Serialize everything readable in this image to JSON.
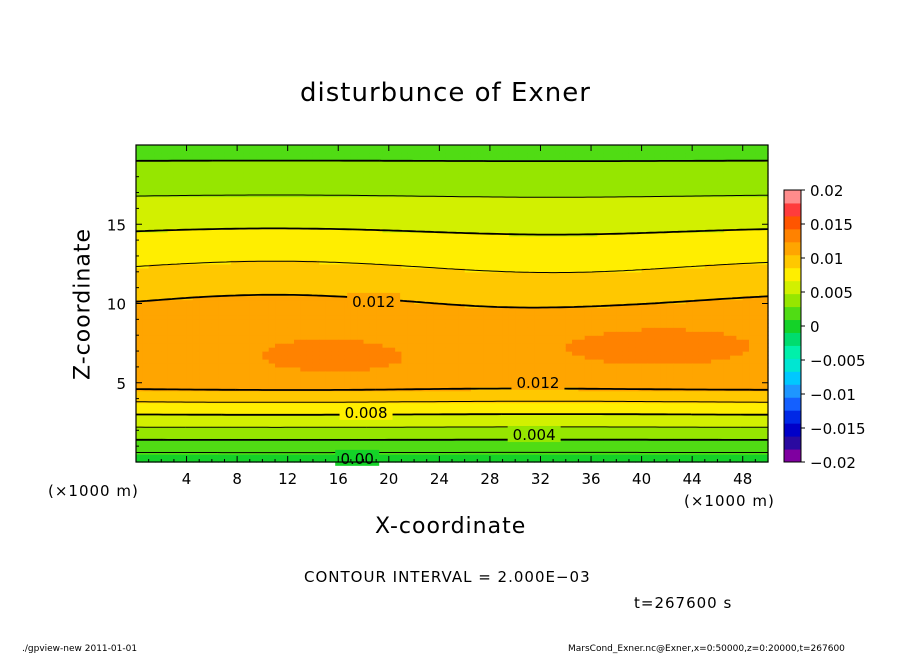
{
  "chart_data": {
    "type": "contour",
    "title": "disturbunce of Exner",
    "xlabel": "X-coordinate",
    "ylabel": "Z-coordinate",
    "x_unit": "(×1000 m)",
    "y_unit": "(×1000 m)",
    "xlim": [
      0,
      50
    ],
    "ylim": [
      0,
      20
    ],
    "x_ticks": [
      4,
      8,
      12,
      16,
      20,
      24,
      28,
      32,
      36,
      40,
      44,
      48
    ],
    "y_ticks": [
      5,
      10,
      15
    ],
    "colorbar": {
      "ticks": [
        0.02,
        0.015,
        0.01,
        0.005,
        0,
        -0.005,
        -0.01,
        -0.015,
        -0.02
      ],
      "tick_labels": [
        "0.02",
        "0.015",
        "0.01",
        "0.005",
        "0",
        "−0.005",
        "−0.01",
        "−0.015",
        "−0.02"
      ],
      "levels": [
        -0.02,
        -0.018,
        -0.016,
        -0.014,
        -0.012,
        -0.01,
        -0.008,
        -0.006,
        -0.004,
        -0.002,
        0,
        0.002,
        0.004,
        0.006,
        0.008,
        0.01,
        0.012,
        0.014,
        0.016,
        0.018,
        0.02
      ],
      "colors": [
        "#7f00a0",
        "#2a0aa0",
        "#0000c8",
        "#0028e6",
        "#1460ff",
        "#1e96ff",
        "#00c8ff",
        "#00e6d2",
        "#00f0aa",
        "#00dc6e",
        "#14d228",
        "#50dc14",
        "#96e600",
        "#d2f000",
        "#ffee00",
        "#ffc800",
        "#ffa500",
        "#ff8200",
        "#ff5500",
        "#ff3c3c",
        "#ff8c8c"
      ]
    },
    "contour_interval": 0.002,
    "contour_labels": [
      {
        "value": "0.012",
        "x": 18.8,
        "z": 10.1
      },
      {
        "value": "0.012",
        "x": 31.8,
        "z": 5.0
      },
      {
        "value": "0.008",
        "x": 18.2,
        "z": 3.1
      },
      {
        "value": "0.004",
        "x": 31.5,
        "z": 1.7
      },
      {
        "value": "0.00",
        "x": 17.5,
        "z": 0.2
      }
    ]
  },
  "text": {
    "title": "disturbunce of Exner",
    "xlabel": "X-coordinate",
    "ylabel": "Z-coordinate",
    "x_unit": "(×1000 m)",
    "y_unit": "(×1000 m)",
    "contour_interval": "CONTOUR INTERVAL = 2.000E−03",
    "time": "t=267600 s",
    "footer_left": "./gpview-new  2011-01-01",
    "footer_right": "MarsCond_Exner.nc@Exner,x=0:50000,z=0:20000,t=267600"
  }
}
